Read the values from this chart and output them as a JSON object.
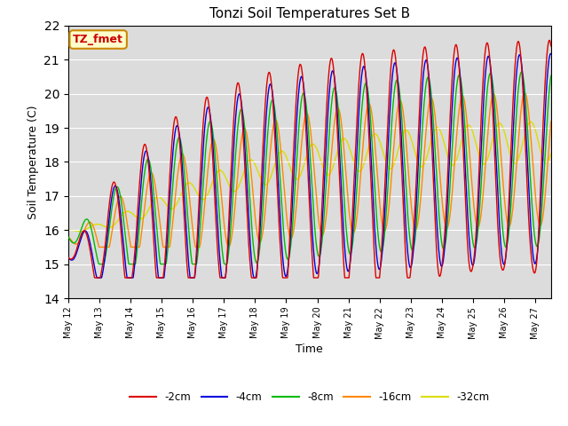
{
  "title": "Tonzi Soil Temperatures Set B",
  "xlabel": "Time",
  "ylabel": "Soil Temperature (C)",
  "ylim": [
    14.0,
    22.0
  ],
  "yticks": [
    14.0,
    15.0,
    16.0,
    17.0,
    18.0,
    19.0,
    20.0,
    21.0,
    22.0
  ],
  "background_color": "#dcdcdc",
  "series": [
    {
      "label": "-2cm",
      "color": "#dd0000",
      "linewidth": 1.0
    },
    {
      "label": "-4cm",
      "color": "#0000dd",
      "linewidth": 1.0
    },
    {
      "label": "-8cm",
      "color": "#00bb00",
      "linewidth": 1.0
    },
    {
      "label": "-16cm",
      "color": "#ff8800",
      "linewidth": 1.0
    },
    {
      "label": "-32cm",
      "color": "#dddd00",
      "linewidth": 1.0
    }
  ],
  "annotation_text": "TZ_fmet",
  "annotation_bg": "#ffffcc",
  "annotation_edge": "#cc8800",
  "n_days": 15.5,
  "points_per_day": 96,
  "start_day": 12
}
